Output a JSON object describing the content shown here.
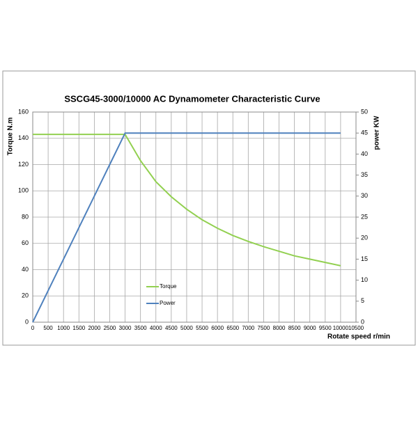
{
  "chart_data": {
    "type": "line",
    "title": "SSCG45-3000/10000  AC Dynamometer Characteristic Curve",
    "x_label": "Rotate speed r/min",
    "y_label": "Torque N.m",
    "y2_label": "power KW",
    "x": [
      0,
      500,
      1000,
      1500,
      2000,
      2500,
      3000,
      3500,
      4000,
      4500,
      5000,
      5500,
      6000,
      6500,
      7000,
      7500,
      8000,
      8500,
      9000,
      9500,
      10000
    ],
    "series": [
      {
        "name": "Torque",
        "color": "#92d050",
        "values": [
          143,
          143,
          143,
          143,
          143,
          143,
          143,
          123,
          107,
          95.5,
          86,
          78,
          71.5,
          66,
          61.5,
          57.5,
          54,
          50.5,
          48,
          45.5,
          43
        ]
      },
      {
        "name": "Power",
        "color": "#4f81bd",
        "axis": "y2",
        "values": [
          0,
          7.5,
          15,
          22.5,
          30,
          37.5,
          45,
          45,
          45,
          45,
          45,
          45,
          45,
          45,
          45,
          45,
          45,
          45,
          45,
          45,
          45
        ]
      }
    ],
    "xlim": [
      0,
      10500
    ],
    "xticks": [
      0,
      500,
      1000,
      1500,
      2000,
      2500,
      3000,
      3500,
      4000,
      4500,
      5000,
      5500,
      6000,
      6500,
      7000,
      7500,
      8000,
      8500,
      9000,
      9500,
      10000,
      10500
    ],
    "ylim": [
      0,
      160
    ],
    "yticks": [
      0,
      20,
      40,
      60,
      80,
      100,
      120,
      140,
      160
    ],
    "y2lim": [
      0,
      50
    ],
    "y2ticks": [
      0,
      5,
      10,
      15,
      20,
      25,
      30,
      35,
      40,
      45,
      50
    ],
    "grid": true
  }
}
